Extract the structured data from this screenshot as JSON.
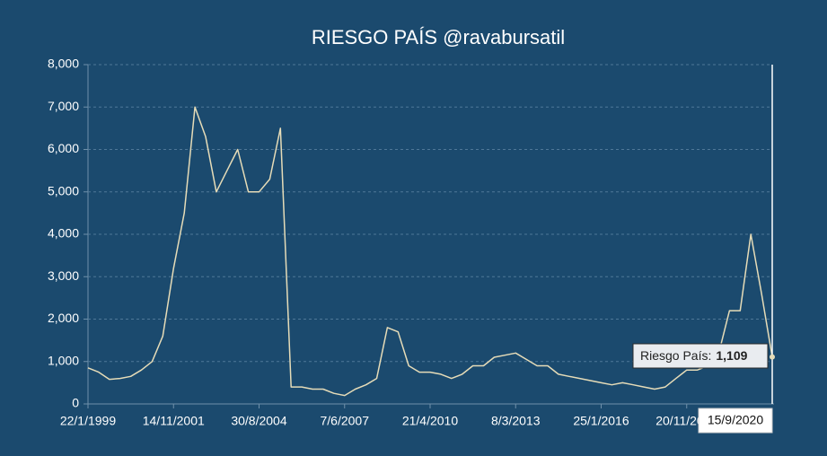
{
  "chart_data": {
    "type": "line",
    "title": "RIESGO PAÍS @ravabursatil",
    "categories": [
      "22/1/1999",
      null,
      null,
      null,
      null,
      null,
      null,
      null,
      "14/11/2001",
      null,
      null,
      null,
      null,
      null,
      null,
      null,
      "30/8/2004",
      null,
      null,
      null,
      null,
      null,
      null,
      null,
      "7/6/2007",
      null,
      null,
      null,
      null,
      null,
      null,
      null,
      "21/4/2010",
      null,
      null,
      null,
      null,
      null,
      null,
      null,
      "8/3/2013",
      null,
      null,
      null,
      null,
      null,
      null,
      null,
      "25/1/2016",
      null,
      null,
      null,
      null,
      null,
      null,
      null,
      "20/11/2018",
      null,
      null,
      null,
      null,
      null,
      null,
      null,
      "15/9/2020"
    ],
    "values": [
      850,
      750,
      580,
      600,
      650,
      800,
      1000,
      1600,
      3200,
      4500,
      7000,
      6300,
      5000,
      5500,
      6000,
      5000,
      5000,
      5300,
      6500,
      400,
      400,
      350,
      350,
      250,
      200,
      350,
      450,
      600,
      1800,
      1700,
      900,
      750,
      750,
      700,
      600,
      700,
      900,
      900,
      1100,
      1150,
      1200,
      1050,
      900,
      900,
      700,
      650,
      600,
      550,
      500,
      450,
      500,
      450,
      400,
      350,
      400,
      600,
      800,
      800,
      900,
      1200,
      2200,
      2200,
      4000,
      2600,
      1109
    ],
    "value_labels": [
      null,
      null,
      null,
      null,
      null,
      null,
      null,
      null,
      null,
      null,
      null,
      null,
      null,
      null,
      null,
      null,
      null,
      null,
      null,
      null,
      null,
      null,
      null,
      null,
      null,
      null,
      null,
      null,
      null,
      null,
      null,
      null,
      null,
      null,
      null,
      null,
      null,
      null,
      null,
      null,
      null,
      null,
      null,
      null,
      null,
      null,
      null,
      null,
      null,
      null,
      null,
      null,
      null,
      null,
      null,
      null,
      null,
      null,
      null,
      null,
      null,
      null,
      null,
      null,
      "1,109"
    ],
    "tooltip_label": "Riesgo País:",
    "color": "#e6dcb8",
    "ylim": [
      0,
      8000
    ],
    "yticks": [
      0,
      {
        "value": 1000,
        "label": "1,000"
      },
      {
        "value": 2000,
        "label": "2,000"
      },
      {
        "value": 3000,
        "label": "3,000"
      },
      {
        "value": 4000,
        "label": "4,000"
      },
      {
        "value": 5000,
        "label": "5,000"
      },
      {
        "value": 6000,
        "label": "6,000"
      },
      {
        "value": 7000,
        "label": "7,000"
      },
      {
        "value": 8000,
        "label": "8,000"
      }
    ],
    "grid": true
  }
}
